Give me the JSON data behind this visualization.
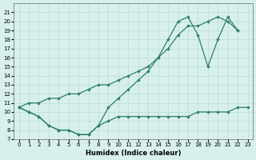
{
  "line1_x": [
    0,
    1,
    2,
    3,
    4,
    5,
    6,
    7,
    8,
    9,
    10,
    11,
    12,
    13,
    14,
    15,
    16,
    17,
    18,
    19,
    20,
    21,
    22
  ],
  "line1_y": [
    10.5,
    10.0,
    9.5,
    8.5,
    8.0,
    8.0,
    7.5,
    7.5,
    8.5,
    10.5,
    11.5,
    12.5,
    13.5,
    14.5,
    16.0,
    18.0,
    20.0,
    20.5,
    18.5,
    15.0,
    18.0,
    20.5,
    19.0
  ],
  "line2_x": [
    0,
    1,
    2,
    3,
    4,
    5,
    6,
    7,
    8,
    9,
    10,
    11,
    12,
    13,
    14,
    15,
    16,
    17,
    18,
    19,
    20,
    21,
    22
  ],
  "line2_y": [
    10.5,
    11.0,
    11.0,
    11.5,
    11.5,
    12.0,
    12.0,
    12.5,
    13.0,
    13.0,
    13.5,
    14.0,
    14.5,
    15.0,
    16.0,
    17.0,
    18.5,
    19.5,
    19.5,
    20.0,
    20.5,
    20.0,
    19.0
  ],
  "line3_x": [
    0,
    1,
    2,
    3,
    4,
    5,
    6,
    7,
    8,
    9,
    10,
    11,
    12,
    13,
    14,
    15,
    16,
    17,
    18,
    19,
    20,
    21,
    22,
    23
  ],
  "line3_y": [
    10.5,
    10.0,
    9.5,
    8.5,
    8.0,
    8.0,
    7.5,
    7.5,
    8.5,
    9.0,
    9.5,
    9.5,
    9.5,
    9.5,
    9.5,
    9.5,
    9.5,
    9.5,
    10.0,
    10.0,
    10.0,
    10.0,
    10.5,
    10.5
  ],
  "color": "#2e7d6e",
  "bg_color": "#d8f0ec",
  "grid_color": "#b8ddd6",
  "xlabel": "Humidex (Indice chaleur)",
  "ylim": [
    7,
    22
  ],
  "xlim": [
    -0.5,
    23.5
  ],
  "yticks": [
    7,
    8,
    9,
    10,
    11,
    12,
    13,
    14,
    15,
    16,
    17,
    18,
    19,
    20,
    21
  ],
  "xticks": [
    0,
    1,
    2,
    3,
    4,
    5,
    6,
    7,
    8,
    9,
    10,
    11,
    12,
    13,
    14,
    15,
    16,
    17,
    18,
    19,
    20,
    21,
    22,
    23
  ]
}
